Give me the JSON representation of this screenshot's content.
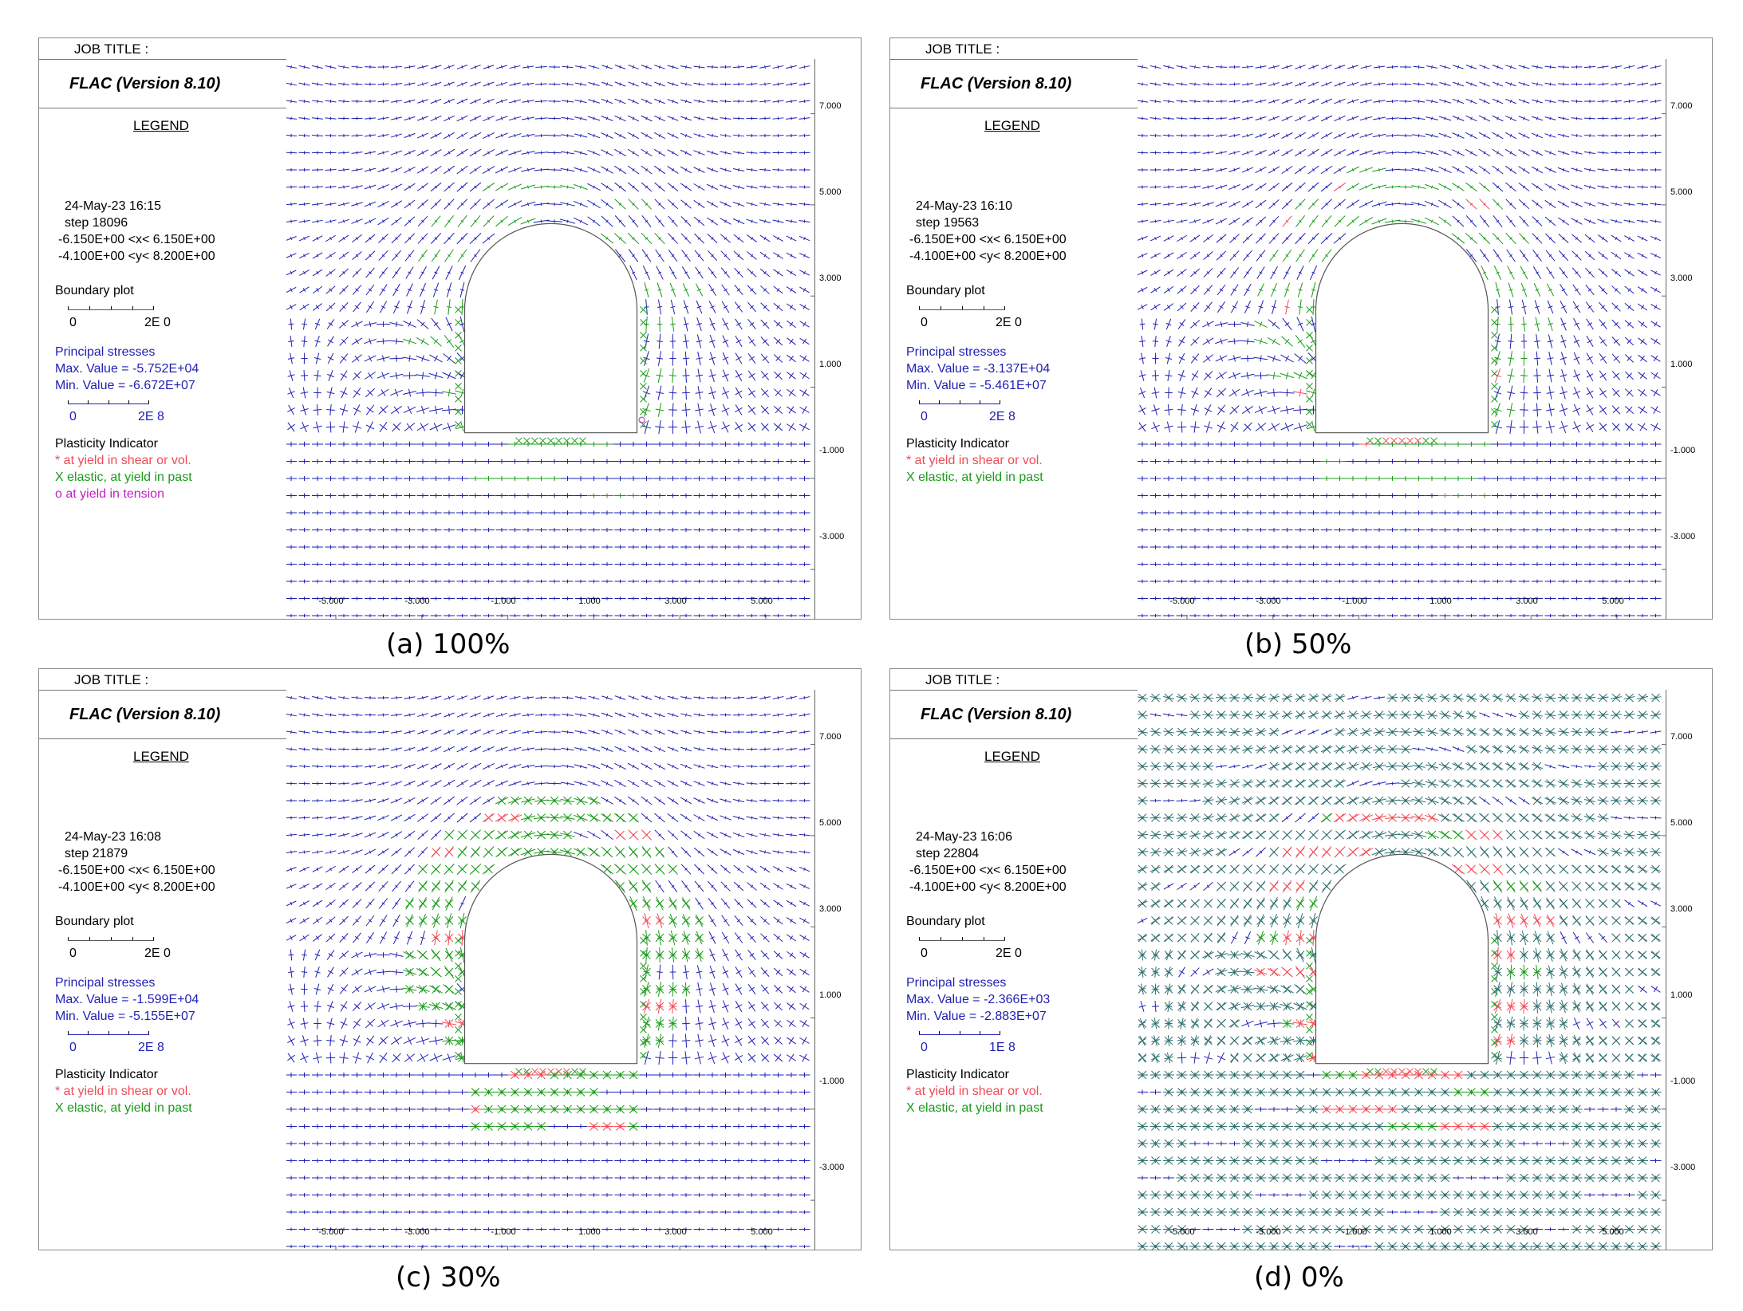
{
  "colors": {
    "blue": "#1f1fb4",
    "red": "#f04a55",
    "green": "#1a9a1a",
    "magenta": "#c020c0",
    "teal": "#2f6e6e",
    "border": "#8a8a8a"
  },
  "common": {
    "job_title": "JOB TITLE :",
    "app": "FLAC (Version 8.10)",
    "legend": "LEGEND",
    "x_range": "-6.150E+00 <x<  6.150E+00",
    "y_range": "-4.100E+00 <y<  8.200E+00",
    "boundary_plot": "Boundary plot",
    "boundary_scale_zero": "0",
    "boundary_scale_max": "2E  0",
    "principal_stresses": "Principal stresses",
    "plasticity_indicator": "Plasticity Indicator",
    "shear": "* at yield in shear or vol.",
    "elastic": "X elastic, at yield in past",
    "tension": "o at yield in tension",
    "scale_zero": "0",
    "y_ticks": [
      "7.000",
      "5.000",
      "3.000",
      "1.000",
      "-1.000",
      "-3.000"
    ],
    "x_ticks": [
      "-5.000",
      "-3.000",
      "-1.000",
      "1.000",
      "3.000",
      "5.000"
    ]
  },
  "panels": [
    {
      "caption": "(a) 100%",
      "datetime": "24-May-23  16:15",
      "step": "step    18096",
      "max_value": "Max. Value =  -5.752E+04",
      "min_value": "Min. Value =  -6.672E+07",
      "stress_scale_max": "2E  8",
      "show_tension": true,
      "yield_level": 0.15,
      "shear_level": 0.0
    },
    {
      "caption": "(b) 50%",
      "datetime": "24-May-23  16:10",
      "step": "step    19563",
      "max_value": "Max. Value =  -3.137E+04",
      "min_value": "Min. Value =  -5.461E+07",
      "stress_scale_max": "2E  8",
      "show_tension": false,
      "yield_level": 0.25,
      "shear_level": 0.05
    },
    {
      "caption": "(c) 30%",
      "datetime": "24-May-23  16:08",
      "step": "step    21879",
      "max_value": "Max. Value =  -1.599E+04",
      "min_value": "Min. Value =  -5.155E+07",
      "stress_scale_max": "2E  8",
      "show_tension": false,
      "yield_level": 0.4,
      "shear_level": 0.12
    },
    {
      "caption": "(d) 0%",
      "datetime": "24-May-23  16:06",
      "step": "step    22804",
      "max_value": "Max. Value =  -2.366E+03",
      "min_value": "Min. Value =  -2.883E+07",
      "stress_scale_max": "1E  8",
      "show_tension": false,
      "yield_level": 1.0,
      "shear_level": 0.3
    }
  ]
}
